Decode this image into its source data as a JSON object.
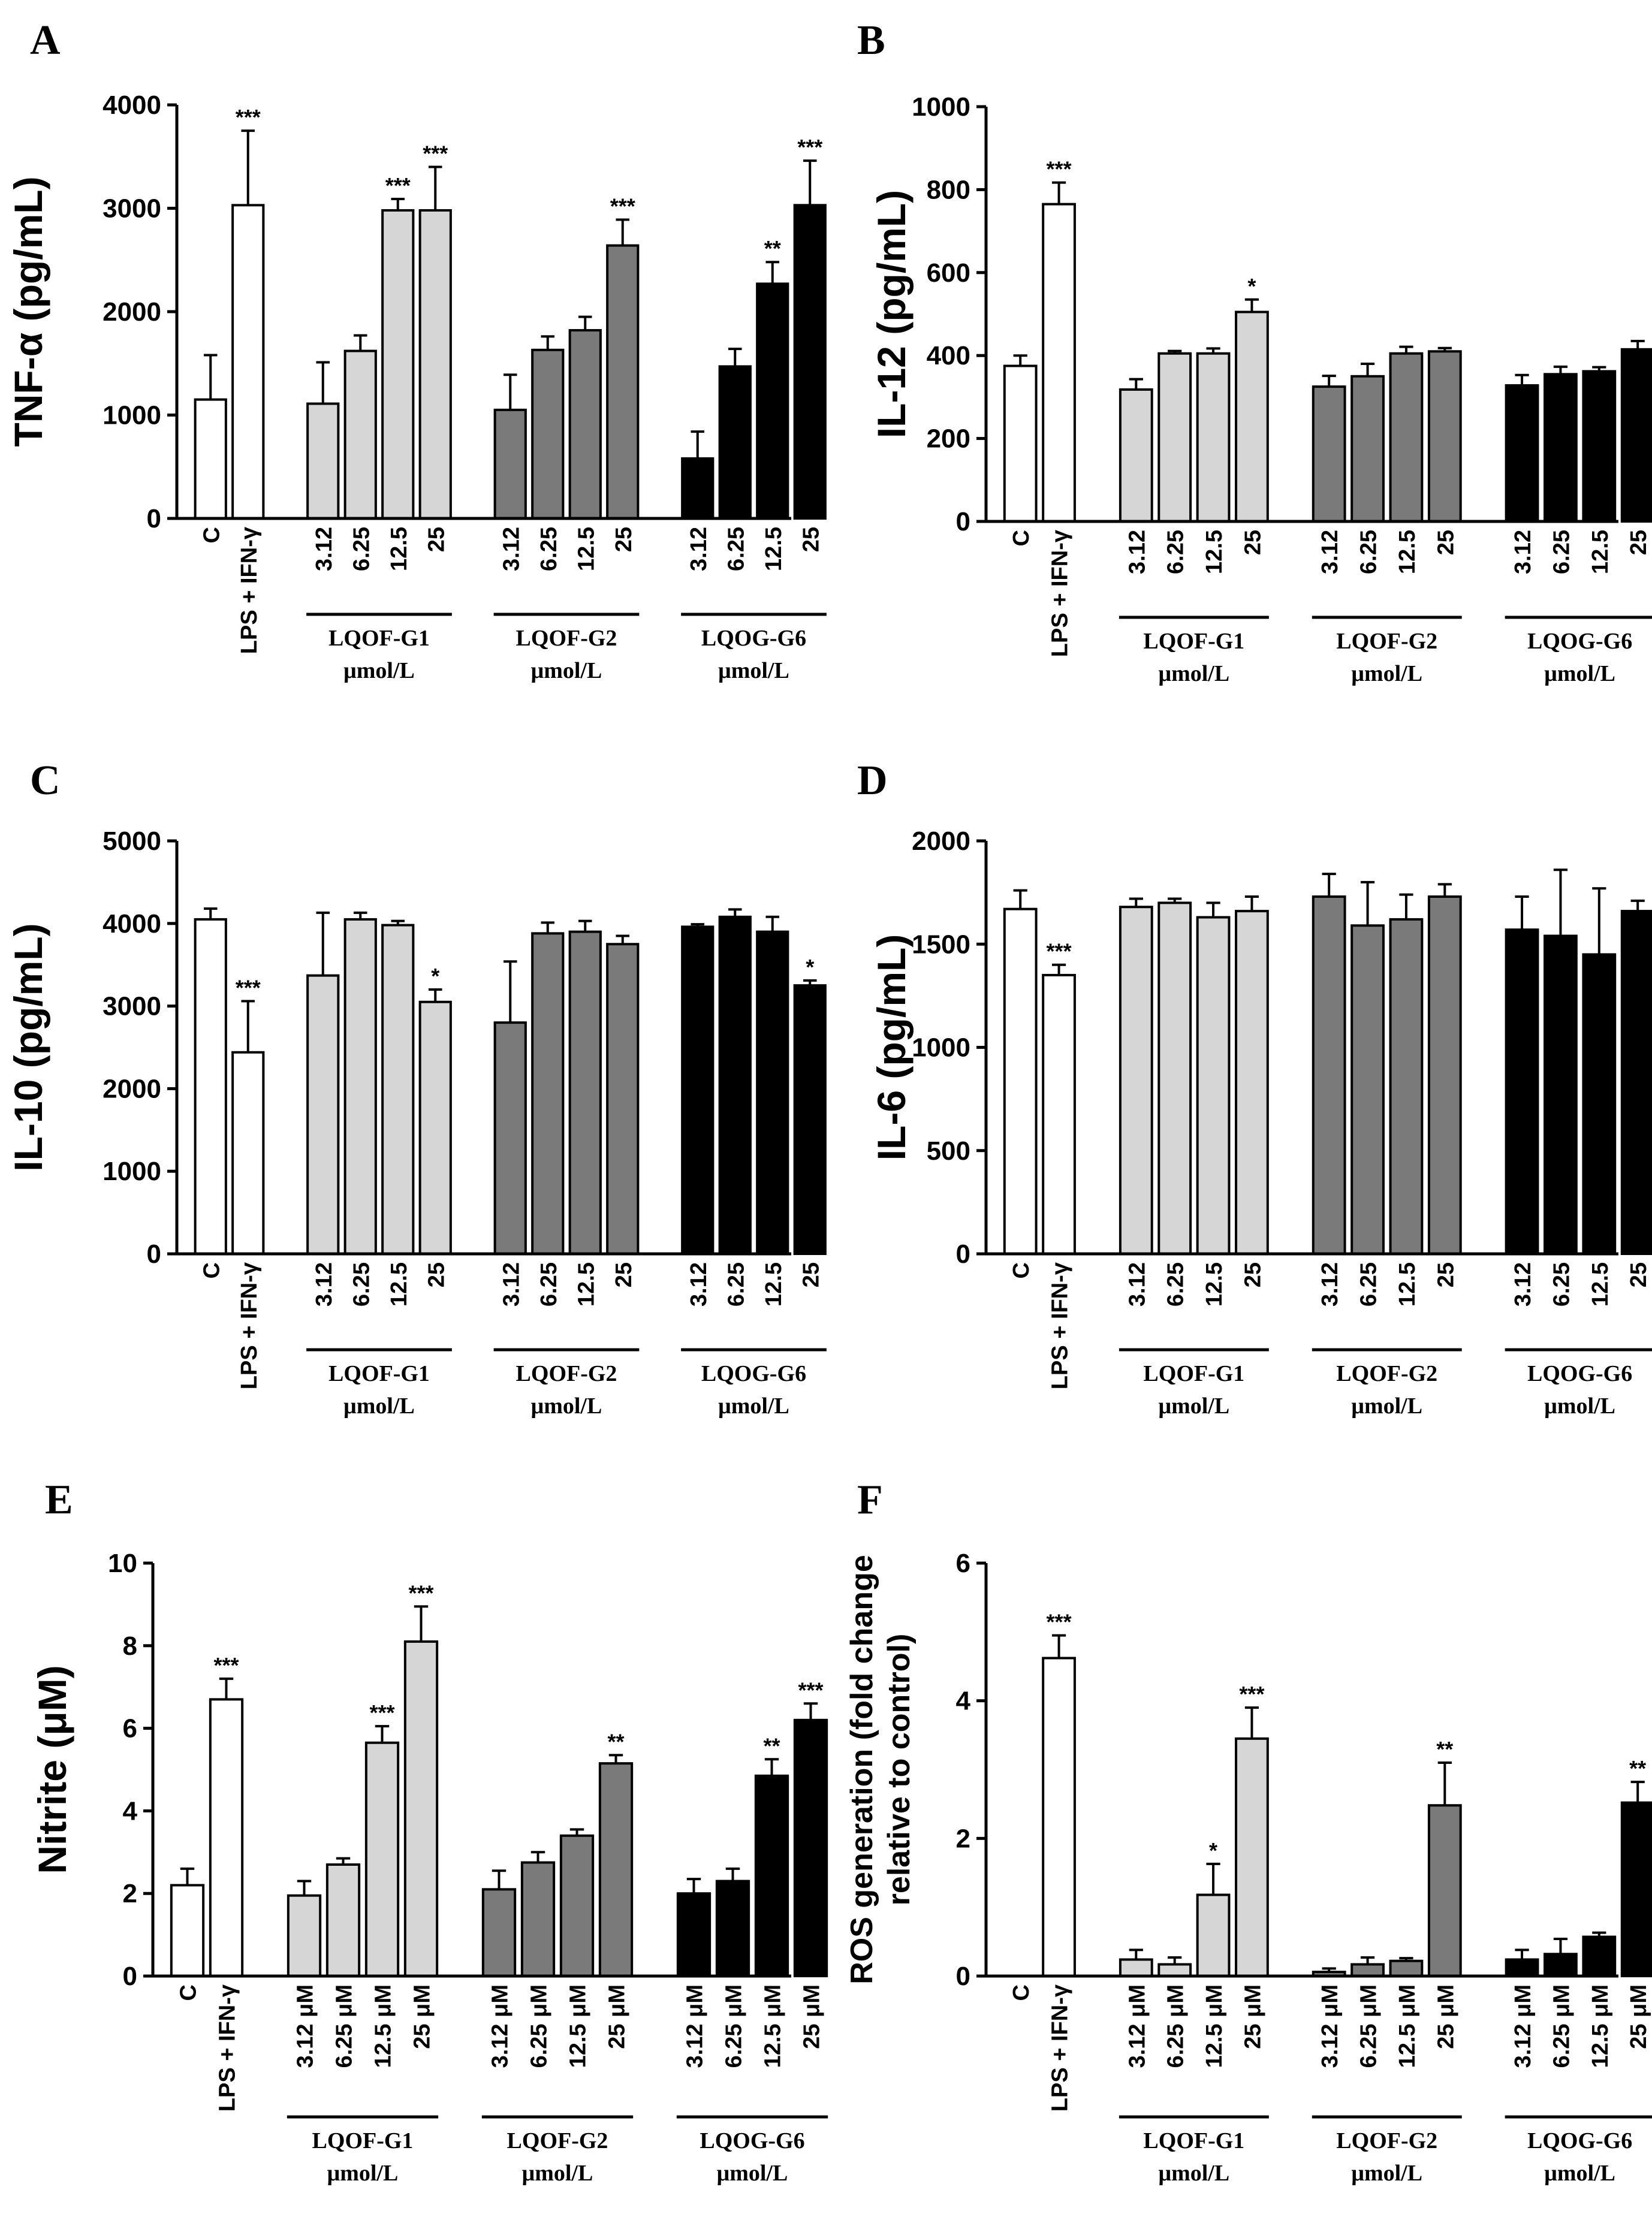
{
  "colors": {
    "control": "#ffffff",
    "LQOF-G1": "#d6d6d6",
    "LQOF-G2": "#7a7a7a",
    "LQOG-G6": "#000000",
    "stroke": "#000000"
  },
  "chart_data": [
    {
      "panel": "A",
      "type": "bar",
      "ylabel": "TNF-α (pg/mL)",
      "ylim": [
        0,
        4000
      ],
      "yticks": [
        "0",
        "1000",
        "2000",
        "3000",
        "4000"
      ],
      "yticks_values": [
        0,
        1000,
        2000,
        3000,
        4000
      ],
      "categories": [
        "C",
        "LPS + IFN-γ",
        "3.12",
        "6.25",
        "12.5",
        "25",
        "3.12",
        "6.25",
        "12.5",
        "25",
        "3.12",
        "6.25",
        "12.5",
        "25"
      ],
      "groups": [
        "control",
        "control",
        "LQOF-G1",
        "LQOF-G1",
        "LQOF-G1",
        "LQOF-G1",
        "LQOF-G2",
        "LQOF-G2",
        "LQOF-G2",
        "LQOF-G2",
        "LQOG-G6",
        "LQOG-G6",
        "LQOG-G6",
        "LQOG-G6"
      ],
      "values": [
        1150,
        3030,
        1110,
        1620,
        2980,
        2980,
        1050,
        1630,
        1820,
        2640,
        580,
        1470,
        2270,
        3030
      ],
      "errors": [
        430,
        720,
        400,
        150,
        110,
        420,
        340,
        130,
        130,
        250,
        260,
        170,
        210,
        430
      ],
      "significance": [
        "",
        "***",
        "",
        "",
        "***",
        "***",
        "",
        "",
        "",
        "***",
        "",
        "",
        "**",
        "***"
      ],
      "group_labels": [
        {
          "name": "LQOF-G1",
          "unit": "μmol/L"
        },
        {
          "name": "LQOF-G2",
          "unit": "μmol/L"
        },
        {
          "name": "LQOG-G6",
          "unit": "μmol/L"
        }
      ]
    },
    {
      "panel": "B",
      "type": "bar",
      "ylabel": "IL-12 (pg/mL)",
      "ylim": [
        0,
        1000
      ],
      "yticks": [
        "0",
        "200",
        "400",
        "600",
        "800",
        "1000"
      ],
      "yticks_values": [
        0,
        200,
        400,
        600,
        800,
        1000
      ],
      "categories": [
        "C",
        "LPS + IFN-γ",
        "3.12",
        "6.25",
        "12.5",
        "25",
        "3.12",
        "6.25",
        "12.5",
        "25",
        "3.12",
        "6.25",
        "12.5",
        "25"
      ],
      "groups": [
        "control",
        "control",
        "LQOF-G1",
        "LQOF-G1",
        "LQOF-G1",
        "LQOF-G1",
        "LQOF-G2",
        "LQOF-G2",
        "LQOF-G2",
        "LQOF-G2",
        "LQOG-G6",
        "LQOG-G6",
        "LQOG-G6",
        "LQOG-G6"
      ],
      "values": [
        375,
        765,
        318,
        405,
        405,
        505,
        325,
        350,
        405,
        410,
        328,
        355,
        362,
        415
      ],
      "errors": [
        25,
        52,
        25,
        6,
        12,
        30,
        26,
        30,
        16,
        8,
        25,
        18,
        10,
        20
      ],
      "significance": [
        "",
        "***",
        "",
        "",
        "",
        "*",
        "",
        "",
        "",
        "",
        "",
        "",
        "",
        ""
      ],
      "group_labels": [
        {
          "name": "LQOF-G1",
          "unit": "μmol/L"
        },
        {
          "name": "LQOF-G2",
          "unit": "μmol/L"
        },
        {
          "name": "LQOG-G6",
          "unit": "μmol/L"
        }
      ]
    },
    {
      "panel": "C",
      "type": "bar",
      "ylabel": "IL-10 (pg/mL)",
      "ylim": [
        0,
        5000
      ],
      "yticks": [
        "0",
        "1000",
        "2000",
        "3000",
        "4000",
        "5000"
      ],
      "yticks_values": [
        0,
        1000,
        2000,
        3000,
        4000,
        5000
      ],
      "categories": [
        "C",
        "LPS + IFN-γ",
        "3.12",
        "6.25",
        "12.5",
        "25",
        "3.12",
        "6.25",
        "12.5",
        "25",
        "3.12",
        "6.25",
        "12.5",
        "25"
      ],
      "groups": [
        "control",
        "control",
        "LQOF-G1",
        "LQOF-G1",
        "LQOF-G1",
        "LQOF-G1",
        "LQOF-G2",
        "LQOF-G2",
        "LQOF-G2",
        "LQOF-G2",
        "LQOG-G6",
        "LQOG-G6",
        "LQOG-G6",
        "LQOG-G6"
      ],
      "values": [
        4050,
        2440,
        3370,
        4050,
        3980,
        3050,
        2800,
        3880,
        3900,
        3750,
        3960,
        4080,
        3900,
        3250
      ],
      "errors": [
        130,
        620,
        760,
        80,
        50,
        150,
        740,
        130,
        130,
        100,
        30,
        90,
        180,
        60
      ],
      "significance": [
        "",
        "***",
        "",
        "",
        "",
        "*",
        "",
        "",
        "",
        "",
        "",
        "",
        "",
        "*"
      ],
      "group_labels": [
        {
          "name": "LQOF-G1",
          "unit": "μmol/L"
        },
        {
          "name": "LQOF-G2",
          "unit": "μmol/L"
        },
        {
          "name": "LQOG-G6",
          "unit": "μmol/L"
        }
      ]
    },
    {
      "panel": "D",
      "type": "bar",
      "ylabel": "IL-6 (pg/mL)",
      "ylim": [
        0,
        2000
      ],
      "yticks": [
        "0",
        "500",
        "1000",
        "1500",
        "2000"
      ],
      "yticks_values": [
        0,
        500,
        1000,
        1500,
        2000
      ],
      "categories": [
        "C",
        "LPS + IFN-γ",
        "3.12",
        "6.25",
        "12.5",
        "25",
        "3.12",
        "6.25",
        "12.5",
        "25",
        "3.12",
        "6.25",
        "12.5",
        "25"
      ],
      "groups": [
        "control",
        "control",
        "LQOF-G1",
        "LQOF-G1",
        "LQOF-G1",
        "LQOF-G1",
        "LQOF-G2",
        "LQOF-G2",
        "LQOF-G2",
        "LQOF-G2",
        "LQOG-G6",
        "LQOG-G6",
        "LQOG-G6",
        "LQOG-G6"
      ],
      "values": [
        1670,
        1350,
        1680,
        1700,
        1630,
        1660,
        1730,
        1590,
        1620,
        1730,
        1570,
        1540,
        1450,
        1660
      ],
      "errors": [
        90,
        50,
        40,
        20,
        70,
        70,
        110,
        210,
        120,
        60,
        160,
        320,
        320,
        50
      ],
      "significance": [
        "",
        "***",
        "",
        "",
        "",
        "",
        "",
        "",
        "",
        "",
        "",
        "",
        "",
        ""
      ],
      "group_labels": [
        {
          "name": "LQOF-G1",
          "unit": "μmol/L"
        },
        {
          "name": "LQOF-G2",
          "unit": "μmol/L"
        },
        {
          "name": "LQOG-G6",
          "unit": "μmol/L"
        }
      ]
    },
    {
      "panel": "E",
      "type": "bar",
      "ylabel": "Nitrite (μM)",
      "ylim": [
        0,
        10
      ],
      "yticks": [
        "0",
        "2",
        "4",
        "6",
        "8",
        "10"
      ],
      "yticks_values": [
        0,
        2,
        4,
        6,
        8,
        10
      ],
      "categories": [
        "C",
        "LPS + IFN-γ",
        "3.12 μM",
        "6.25 μM",
        "12.5 μM",
        "25 μM",
        "3.12 μM",
        "6.25 μM",
        "12.5 μM",
        "25 μM",
        "3.12 μM",
        "6.25 μM",
        "12.5 μM",
        "25 μM"
      ],
      "groups": [
        "control",
        "control",
        "LQOF-G1",
        "LQOF-G1",
        "LQOF-G1",
        "LQOF-G1",
        "LQOF-G2",
        "LQOF-G2",
        "LQOF-G2",
        "LQOF-G2",
        "LQOG-G6",
        "LQOG-G6",
        "LQOG-G6",
        "LQOG-G6"
      ],
      "values": [
        2.2,
        6.7,
        1.95,
        2.7,
        5.65,
        8.1,
        2.1,
        2.75,
        3.4,
        5.15,
        2.0,
        2.3,
        4.85,
        6.2
      ],
      "errors": [
        0.4,
        0.5,
        0.35,
        0.15,
        0.4,
        0.85,
        0.45,
        0.25,
        0.15,
        0.2,
        0.35,
        0.3,
        0.4,
        0.4
      ],
      "significance": [
        "",
        "***",
        "",
        "",
        "***",
        "***",
        "",
        "",
        "",
        "**",
        "",
        "",
        "**",
        "***"
      ],
      "group_labels": [
        {
          "name": "LQOF-G1",
          "unit": "μmol/L"
        },
        {
          "name": "LQOF-G2",
          "unit": "μmol/L"
        },
        {
          "name": "LQOG-G6",
          "unit": "μmol/L"
        }
      ]
    },
    {
      "panel": "F",
      "type": "bar",
      "ylabel": "ROS generation (fold change relative to control)",
      "ylabel_lines": [
        "ROS generation (fold change",
        "relative to control)"
      ],
      "ylim": [
        0,
        6
      ],
      "yticks": [
        "0",
        "2",
        "4",
        "6"
      ],
      "yticks_values": [
        0,
        2,
        4,
        6
      ],
      "categories": [
        "C",
        "LPS + IFN-γ",
        "3.12 μM",
        "6.25 μM",
        "12.5 μM",
        "25 μM",
        "3.12 μM",
        "6.25 μM",
        "12.5 μM",
        "25 μM",
        "3.12 μM",
        "6.25 μM",
        "12.5 μM",
        "25 μM"
      ],
      "groups": [
        "control",
        "control",
        "LQOF-G1",
        "LQOF-G1",
        "LQOF-G1",
        "LQOF-G1",
        "LQOF-G2",
        "LQOF-G2",
        "LQOF-G2",
        "LQOF-G2",
        "LQOG-G6",
        "LQOG-G6",
        "LQOG-G6",
        "LQOG-G6"
      ],
      "values": [
        0,
        4.62,
        0.24,
        0.17,
        1.18,
        3.45,
        0.06,
        0.17,
        0.22,
        2.48,
        0.24,
        0.32,
        0.57,
        2.52
      ],
      "errors": [
        0,
        0.33,
        0.14,
        0.1,
        0.45,
        0.45,
        0.05,
        0.1,
        0.04,
        0.62,
        0.14,
        0.22,
        0.06,
        0.3
      ],
      "significance": [
        "",
        "***",
        "",
        "",
        "*",
        "***",
        "",
        "",
        "",
        "**",
        "",
        "",
        "",
        "**"
      ],
      "group_labels": [
        {
          "name": "LQOF-G1",
          "unit": "μmol/L"
        },
        {
          "name": "LQOF-G2",
          "unit": "μmol/L"
        },
        {
          "name": "LQOG-G6",
          "unit": "μmol/L"
        }
      ]
    }
  ]
}
